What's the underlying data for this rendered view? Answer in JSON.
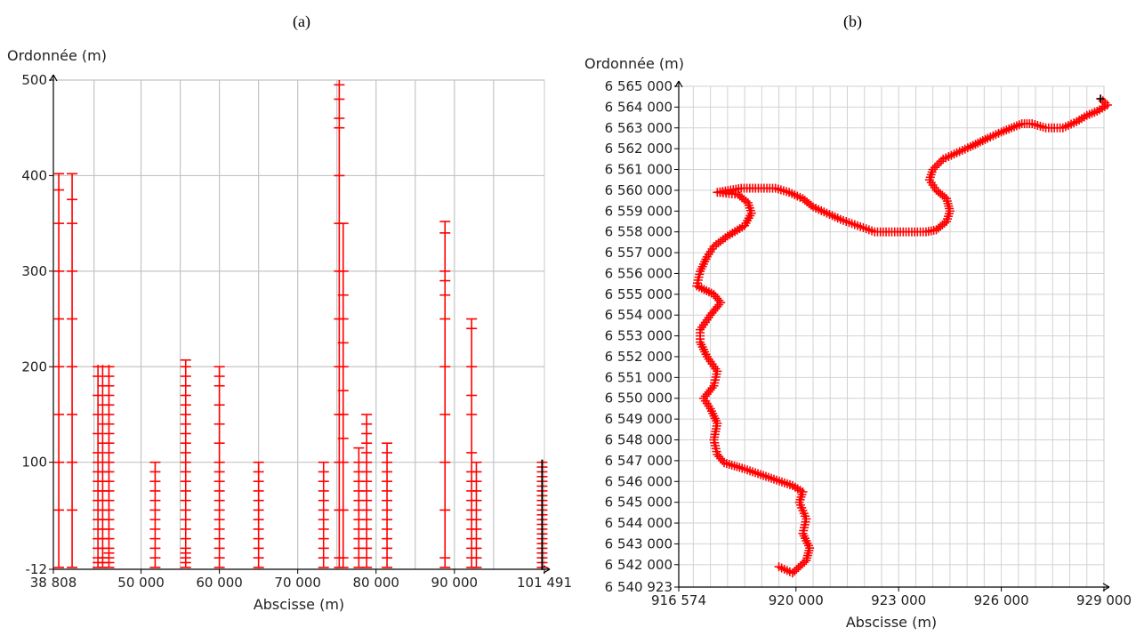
{
  "figure": {
    "panel_a_label": "(a)",
    "panel_b_label": "(b)"
  },
  "chart_data": [
    {
      "type": "scatter",
      "marker": "+",
      "marker_color": "#ff0000",
      "grid": true,
      "xlabel": "Abscisse (m)",
      "ylabel": "Ordonnée (m)",
      "xlim": [
        38808,
        101491
      ],
      "ylim": [
        -12,
        500
      ],
      "x_ticks": [
        38808,
        50000,
        60000,
        70000,
        80000,
        90000,
        101491
      ],
      "x_tick_labels": [
        "38 808",
        "50 000",
        "60 000",
        "70 000",
        "80 000",
        "90 000",
        "101 491"
      ],
      "y_ticks": [
        -12,
        100,
        200,
        300,
        400,
        500
      ],
      "y_tick_labels": [
        "-12",
        "100",
        "200",
        "300",
        "400",
        "500"
      ],
      "columns": [
        {
          "x": 39500,
          "ymin": -10,
          "ymax": 402,
          "values": [
            -10,
            50,
            100,
            150,
            200,
            250,
            300,
            350,
            385,
            402
          ]
        },
        {
          "x": 41200,
          "ymin": -10,
          "ymax": 402,
          "values": [
            -10,
            50,
            100,
            150,
            200,
            250,
            300,
            350,
            375,
            402
          ]
        },
        {
          "x": 44500,
          "ymin": -10,
          "ymax": 202,
          "values": [
            -10,
            -5,
            0,
            10,
            20,
            30,
            40,
            50,
            60,
            70,
            80,
            90,
            100,
            110,
            130,
            150,
            170,
            190,
            200
          ]
        },
        {
          "x": 45100,
          "ymin": -10,
          "ymax": 202,
          "values": [
            -10,
            -5,
            0,
            10,
            20,
            30,
            40,
            50,
            60,
            70,
            80,
            90,
            100,
            120,
            140,
            160,
            180,
            200
          ]
        },
        {
          "x": 45900,
          "ymin": -10,
          "ymax": 202,
          "values": [
            -10,
            -5,
            0,
            5,
            10,
            20,
            30,
            40,
            50,
            60,
            70,
            80,
            90,
            100,
            110,
            120,
            130,
            140,
            150,
            160,
            170,
            180,
            190,
            200
          ]
        },
        {
          "x": 51800,
          "ymin": -10,
          "ymax": 100,
          "values": [
            -10,
            0,
            10,
            20,
            30,
            40,
            50,
            60,
            70,
            80,
            90,
            100
          ]
        },
        {
          "x": 55700,
          "ymin": -10,
          "ymax": 207,
          "values": [
            -10,
            -5,
            0,
            5,
            10,
            20,
            30,
            40,
            50,
            60,
            70,
            80,
            90,
            100,
            110,
            120,
            130,
            140,
            150,
            160,
            170,
            180,
            190,
            200,
            207
          ]
        },
        {
          "x": 60000,
          "ymin": -10,
          "ymax": 200,
          "values": [
            -10,
            0,
            10,
            20,
            30,
            40,
            50,
            60,
            70,
            80,
            90,
            100,
            120,
            140,
            160,
            180,
            190,
            200
          ]
        },
        {
          "x": 65000,
          "ymin": -10,
          "ymax": 100,
          "values": [
            -10,
            0,
            10,
            20,
            30,
            40,
            50,
            60,
            70,
            80,
            90,
            100
          ]
        },
        {
          "x": 73300,
          "ymin": -10,
          "ymax": 100,
          "values": [
            -10,
            0,
            10,
            20,
            30,
            40,
            50,
            60,
            70,
            80,
            90,
            100
          ]
        },
        {
          "x": 75300,
          "ymin": -10,
          "ymax": 500,
          "values": [
            -10,
            0,
            50,
            100,
            150,
            200,
            250,
            300,
            350,
            400,
            450,
            460,
            480,
            495
          ]
        },
        {
          "x": 75800,
          "ymin": -10,
          "ymax": 350,
          "values": [
            -10,
            0,
            50,
            100,
            125,
            150,
            175,
            200,
            225,
            250,
            275,
            300,
            350
          ]
        },
        {
          "x": 77800,
          "ymin": -10,
          "ymax": 115,
          "values": [
            -10,
            0,
            10,
            20,
            30,
            40,
            50,
            60,
            70,
            80,
            90,
            100,
            115
          ]
        },
        {
          "x": 78800,
          "ymin": -10,
          "ymax": 150,
          "values": [
            -10,
            0,
            10,
            20,
            30,
            40,
            50,
            60,
            70,
            80,
            90,
            100,
            110,
            120,
            130,
            140,
            150
          ]
        },
        {
          "x": 81400,
          "ymin": -10,
          "ymax": 120,
          "values": [
            -10,
            0,
            10,
            20,
            30,
            40,
            50,
            60,
            70,
            80,
            90,
            100,
            110,
            120
          ]
        },
        {
          "x": 88800,
          "ymin": -10,
          "ymax": 352,
          "values": [
            -10,
            0,
            50,
            100,
            150,
            200,
            250,
            275,
            290,
            300,
            340,
            352
          ]
        },
        {
          "x": 92200,
          "ymin": -10,
          "ymax": 250,
          "values": [
            -10,
            0,
            10,
            20,
            30,
            40,
            50,
            60,
            70,
            80,
            90,
            110,
            150,
            170,
            200,
            240,
            250
          ]
        },
        {
          "x": 92800,
          "ymin": -10,
          "ymax": 100,
          "values": [
            -10,
            0,
            10,
            20,
            30,
            40,
            50,
            60,
            70,
            80,
            90,
            100
          ]
        },
        {
          "x": 101200,
          "ymin": -10,
          "ymax": 100,
          "values": [
            -10,
            -5,
            0,
            5,
            10,
            15,
            20,
            25,
            30,
            35,
            40,
            45,
            50,
            55,
            60,
            65,
            70,
            75,
            80,
            85,
            90,
            95,
            100
          ]
        }
      ],
      "highlight_column": {
        "x": 101200,
        "color": "#000000"
      }
    },
    {
      "type": "scatter",
      "marker": "+",
      "marker_color": "#ff0000",
      "grid": true,
      "xlabel": "Abscisse (m)",
      "ylabel": "Ordonnée (m)",
      "xlim": [
        916574,
        929000
      ],
      "ylim": [
        6540923,
        6565000
      ],
      "x_ticks": [
        916574,
        920000,
        923000,
        926000,
        929000
      ],
      "x_tick_labels": [
        "916 574",
        "920 000",
        "923 000",
        "926 000",
        "929 000"
      ],
      "y_ticks": [
        6540923,
        6542000,
        6543000,
        6544000,
        6545000,
        6546000,
        6547000,
        6548000,
        6549000,
        6550000,
        6551000,
        6552000,
        6553000,
        6554000,
        6555000,
        6556000,
        6557000,
        6558000,
        6559000,
        6560000,
        6561000,
        6562000,
        6563000,
        6564000,
        6565000
      ],
      "y_tick_labels": [
        "6 540 923",
        "6 542 000",
        "6 543 000",
        "6 544 000",
        "6 545 000",
        "6 546 000",
        "6 547 000",
        "6 548 000",
        "6 549 000",
        "6 550 000",
        "6 551 000",
        "6 552 000",
        "6 553 000",
        "6 554 000",
        "6 555 000",
        "6 556 000",
        "6 557 000",
        "6 558 000",
        "6 559 000",
        "6 560 000",
        "6 561 000",
        "6 562 000",
        "6 563 000",
        "6 564 000",
        "6 565 000"
      ],
      "path": [
        [
          919500,
          6541900
        ],
        [
          919900,
          6541600
        ],
        [
          920300,
          6542200
        ],
        [
          920400,
          6542800
        ],
        [
          920200,
          6543500
        ],
        [
          920300,
          6544200
        ],
        [
          920100,
          6545000
        ],
        [
          920200,
          6545500
        ],
        [
          919900,
          6545800
        ],
        [
          919200,
          6546200
        ],
        [
          918500,
          6546600
        ],
        [
          917900,
          6546900
        ],
        [
          917700,
          6547300
        ],
        [
          917600,
          6548000
        ],
        [
          917700,
          6548800
        ],
        [
          917500,
          6549500
        ],
        [
          917300,
          6550000
        ],
        [
          917600,
          6550600
        ],
        [
          917700,
          6551300
        ],
        [
          917400,
          6552000
        ],
        [
          917200,
          6552700
        ],
        [
          917200,
          6553300
        ],
        [
          917500,
          6554000
        ],
        [
          917800,
          6554600
        ],
        [
          917600,
          6555000
        ],
        [
          917100,
          6555400
        ],
        [
          917200,
          6556100
        ],
        [
          917400,
          6556800
        ],
        [
          917600,
          6557300
        ],
        [
          918000,
          6557800
        ],
        [
          918500,
          6558300
        ],
        [
          918700,
          6558900
        ],
        [
          918600,
          6559400
        ],
        [
          918300,
          6559800
        ],
        [
          917700,
          6559900
        ],
        [
          918400,
          6560100
        ],
        [
          919400,
          6560100
        ],
        [
          919800,
          6559900
        ],
        [
          920200,
          6559600
        ],
        [
          920500,
          6559200
        ],
        [
          920900,
          6558900
        ],
        [
          921300,
          6558600
        ],
        [
          921800,
          6558300
        ],
        [
          922300,
          6558000
        ],
        [
          922800,
          6558000
        ],
        [
          923300,
          6558000
        ],
        [
          923800,
          6558000
        ],
        [
          924100,
          6558100
        ],
        [
          924400,
          6558500
        ],
        [
          924500,
          6559000
        ],
        [
          924400,
          6559600
        ],
        [
          924100,
          6560000
        ],
        [
          923900,
          6560500
        ],
        [
          924000,
          6561000
        ],
        [
          924300,
          6561500
        ],
        [
          924700,
          6561800
        ],
        [
          925100,
          6562100
        ],
        [
          925600,
          6562500
        ],
        [
          926000,
          6562800
        ],
        [
          926300,
          6563000
        ],
        [
          926600,
          6563200
        ],
        [
          926900,
          6563200
        ],
        [
          927300,
          6563000
        ],
        [
          927800,
          6563000
        ],
        [
          928200,
          6563300
        ],
        [
          928500,
          6563600
        ],
        [
          928800,
          6563800
        ],
        [
          929100,
          6564100
        ],
        [
          928900,
          6564400
        ]
      ],
      "end_marker": {
        "x": 928900,
        "y": 6564400,
        "color": "#000000"
      }
    }
  ]
}
